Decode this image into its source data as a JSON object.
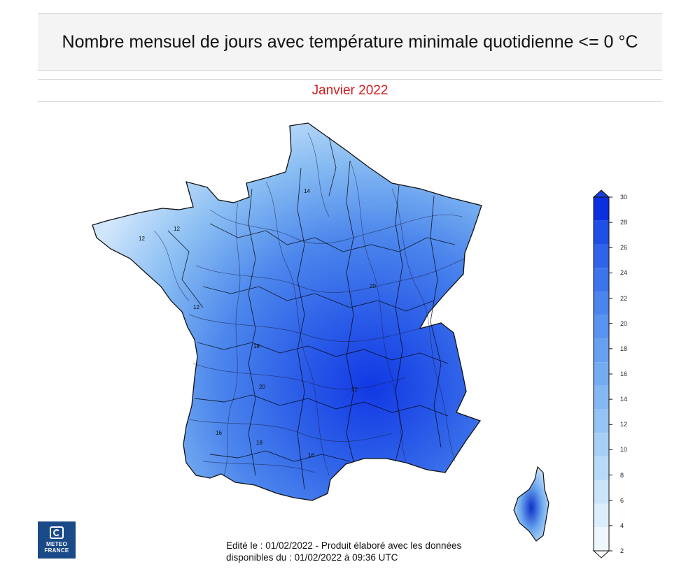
{
  "header": {
    "title": "Nombre mensuel de jours avec température minimale quotidienne <= 0 °C",
    "period": "Janvier 2022"
  },
  "map": {
    "contour_labels": [
      "14",
      "12",
      "12",
      "20",
      "18",
      "20",
      "22",
      "18",
      "16",
      "16",
      "12"
    ],
    "colors": {
      "fill_light": "#cfe6fb",
      "fill_mid": "#64a8ec",
      "fill_dark": "#1e50e6",
      "outline": "#111111"
    }
  },
  "legend": {
    "ticks": [
      "30",
      "28",
      "26",
      "24",
      "22",
      "20",
      "18",
      "16",
      "14",
      "12",
      "10",
      "8",
      "6",
      "4",
      "2"
    ],
    "colors": [
      "#0b2fe0",
      "#1e50e6",
      "#2f63ea",
      "#3c74ec",
      "#4a84ee",
      "#5893ef",
      "#66a0f0",
      "#74acf2",
      "#84b8f3",
      "#94c3f5",
      "#a6cff7",
      "#b8daf9",
      "#cae4fa",
      "#dceefc",
      "#eef6fe"
    ]
  },
  "logo": {
    "line1": "METEO",
    "line2": "FRANCE"
  },
  "footer": {
    "line1": "Edité le : 01/02/2022 - Produit élaboré avec les données",
    "line2": "disponibles du : 01/02/2022 à 09:36 UTC"
  }
}
